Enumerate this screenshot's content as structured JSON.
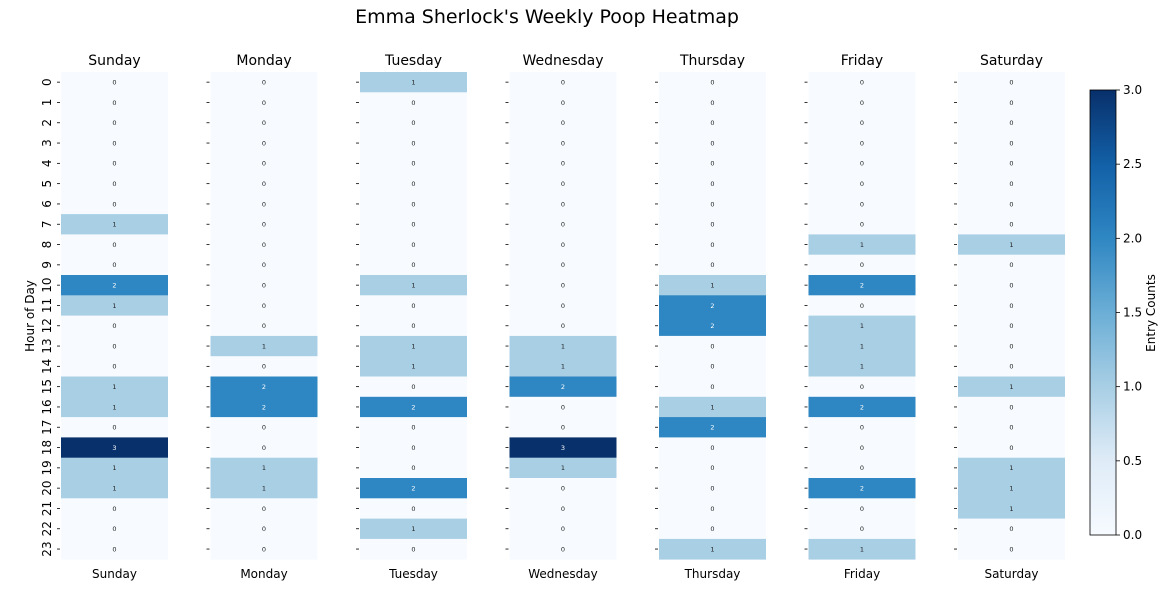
{
  "chart_data": {
    "type": "heatmap",
    "title": "Emma Sherlock's Weekly Poop Heatmap",
    "ylabel": "Hour of Day",
    "colorbar_label": "Entry Counts",
    "colormap": "Blues",
    "vmin": 0,
    "vmax": 3,
    "colorbar_ticks": [
      "0.0",
      "0.5",
      "1.0",
      "1.5",
      "2.0",
      "2.5",
      "3.0"
    ],
    "colorbar_tick_values": [
      0,
      0.5,
      1.0,
      1.5,
      2.0,
      2.5,
      3.0
    ],
    "hours": [
      "0",
      "1",
      "2",
      "3",
      "4",
      "5",
      "6",
      "7",
      "8",
      "9",
      "10",
      "11",
      "12",
      "13",
      "14",
      "15",
      "16",
      "17",
      "18",
      "19",
      "20",
      "21",
      "22",
      "23"
    ],
    "days": [
      {
        "name": "Sunday",
        "values": [
          0,
          0,
          0,
          0,
          0,
          0,
          0,
          1,
          0,
          0,
          2,
          1,
          0,
          0,
          0,
          1,
          1,
          0,
          3,
          1,
          1,
          0,
          0,
          0
        ]
      },
      {
        "name": "Monday",
        "values": [
          0,
          0,
          0,
          0,
          0,
          0,
          0,
          0,
          0,
          0,
          0,
          0,
          0,
          1,
          0,
          2,
          2,
          0,
          0,
          1,
          1,
          0,
          0,
          0
        ]
      },
      {
        "name": "Tuesday",
        "values": [
          1,
          0,
          0,
          0,
          0,
          0,
          0,
          0,
          0,
          0,
          1,
          0,
          0,
          1,
          1,
          0,
          2,
          0,
          0,
          0,
          2,
          0,
          1,
          0
        ]
      },
      {
        "name": "Wednesday",
        "values": [
          0,
          0,
          0,
          0,
          0,
          0,
          0,
          0,
          0,
          0,
          0,
          0,
          0,
          1,
          1,
          2,
          0,
          0,
          3,
          1,
          0,
          0,
          0,
          0
        ]
      },
      {
        "name": "Thursday",
        "values": [
          0,
          0,
          0,
          0,
          0,
          0,
          0,
          0,
          0,
          0,
          1,
          2,
          2,
          0,
          0,
          0,
          1,
          2,
          0,
          0,
          0,
          0,
          0,
          1
        ]
      },
      {
        "name": "Friday",
        "values": [
          0,
          0,
          0,
          0,
          0,
          0,
          0,
          0,
          1,
          0,
          2,
          0,
          1,
          1,
          1,
          0,
          2,
          0,
          0,
          0,
          2,
          0,
          0,
          1
        ]
      },
      {
        "name": "Saturday",
        "values": [
          0,
          0,
          0,
          0,
          0,
          0,
          0,
          0,
          1,
          0,
          0,
          0,
          0,
          0,
          0,
          1,
          0,
          0,
          0,
          1,
          1,
          1,
          0,
          0
        ]
      }
    ],
    "colors": {
      "0": "#f7fbff",
      "1": "#a9cfe5",
      "2": "#2e86c2",
      "3": "#08306b"
    }
  }
}
